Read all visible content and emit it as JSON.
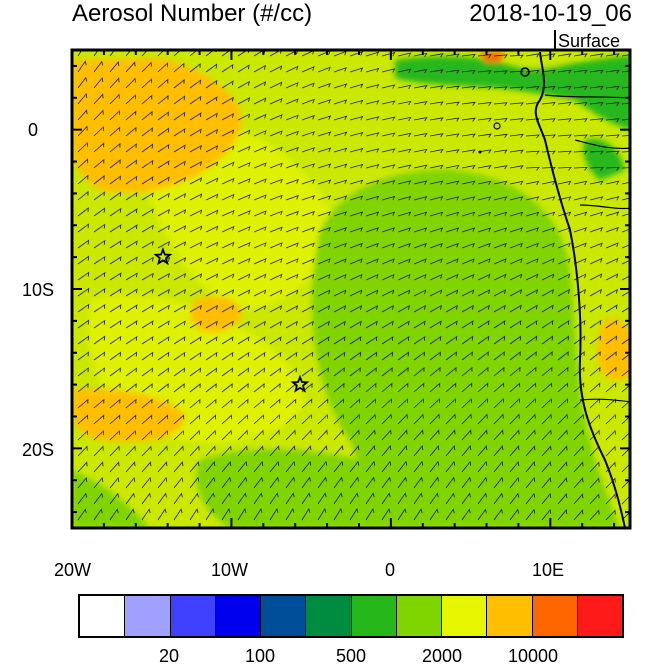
{
  "header": {
    "title": "Aerosol Number (#/cc)",
    "time": "2018-10-19_06",
    "level": "Surface"
  },
  "map": {
    "lon_range": [
      -20,
      15
    ],
    "lat_range": [
      -25,
      5
    ],
    "x_ticks": [
      "20W",
      "10W",
      "0",
      "10E"
    ],
    "y_ticks": [
      "0",
      "10S",
      "20S"
    ],
    "markers": [
      {
        "name": "star-marker-1",
        "lon": -14.3,
        "lat": -8.0
      },
      {
        "name": "star-marker-2",
        "lon": -5.7,
        "lat": -16.0
      }
    ]
  },
  "colorbar": {
    "colors": [
      "#ffffff",
      "#a0a0ff",
      "#4040ff",
      "#0000ee",
      "#004d99",
      "#008c40",
      "#26b81a",
      "#80d400",
      "#e6f500",
      "#ffbf00",
      "#ff6600",
      "#ff1a1a"
    ],
    "labels": [
      "20",
      "100",
      "500",
      "2000",
      "10000"
    ]
  },
  "palette": {
    "ocean_base": "#cbe800",
    "low": "#80d400",
    "high": "#ffbf00",
    "land_green": "#26b81a",
    "coast": "#000000"
  }
}
